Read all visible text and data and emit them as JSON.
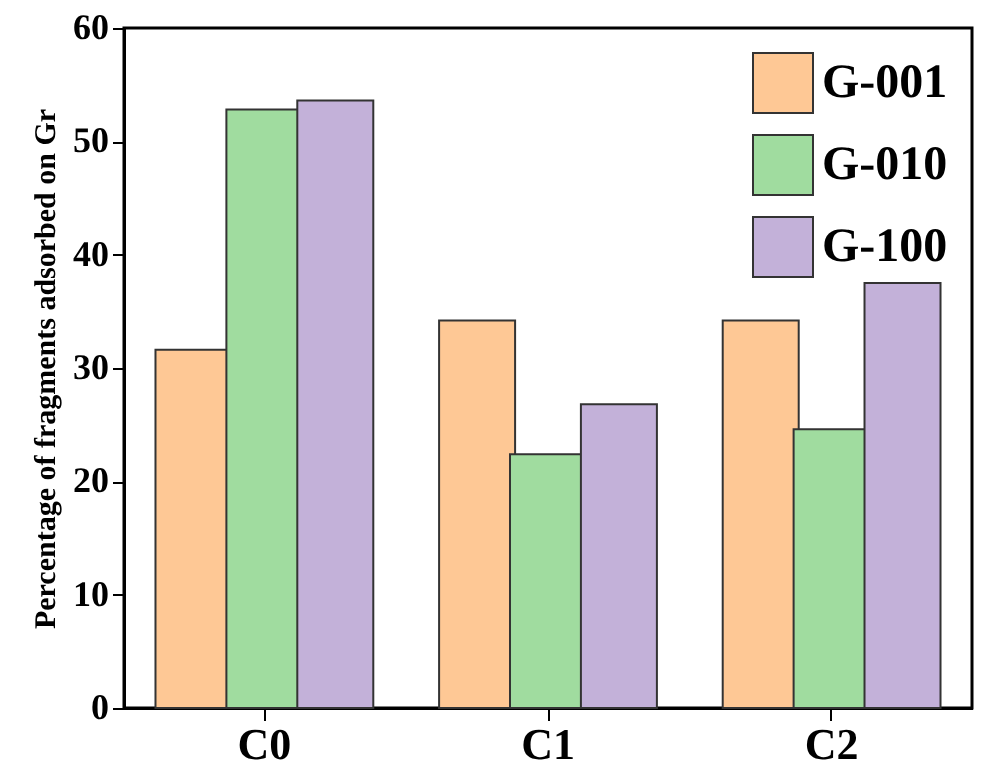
{
  "chart_data": {
    "type": "bar",
    "ylabel": "Percentage of fragments adsorbed on Gr",
    "categories": [
      "C0",
      "C1",
      "C2"
    ],
    "series": [
      {
        "name": "G-001",
        "color": "#fec895",
        "values": [
          31.6,
          34.2,
          34.2
        ]
      },
      {
        "name": "G-010",
        "color": "#a0dc9f",
        "values": [
          52.8,
          22.4,
          24.6
        ]
      },
      {
        "name": "G-100",
        "color": "#c3b1d9",
        "values": [
          53.6,
          26.8,
          37.5
        ]
      }
    ],
    "ylim": [
      0,
      60
    ],
    "yticks": [
      0,
      10,
      20,
      30,
      40,
      50,
      60
    ],
    "grid": false,
    "legend": "top right"
  }
}
